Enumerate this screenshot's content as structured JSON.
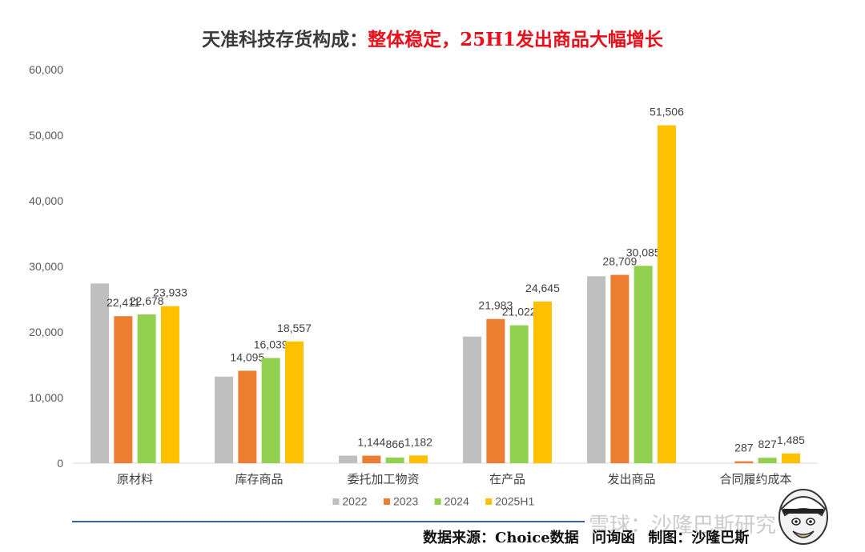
{
  "title": {
    "part1": "天准科技存货构成：",
    "part2": "整体稳定，25H1发出商品大幅增长"
  },
  "footer": {
    "source": "数据来源：Choice数据",
    "tool": "问询函",
    "author": "制图：沙隆巴斯"
  },
  "watermark": "雪球：沙隆巴斯研究",
  "colors": {
    "2022": "#bfbfbf",
    "2023": "#ed7d31",
    "2024": "#92d050",
    "2025H1": "#ffc000"
  },
  "chart_data": {
    "type": "bar",
    "title": "天准科技存货构成：整体稳定，25H1发出商品大幅增长",
    "categories": [
      "原材料",
      "库存商品",
      "委托加工物资",
      "在产品",
      "发出商品",
      "合同履约成本"
    ],
    "series": [
      {
        "name": "2022",
        "values": [
          27400,
          13200,
          1150,
          19300,
          28500,
          0
        ],
        "labels": [
          "",
          "",
          "",
          "",
          "",
          ""
        ]
      },
      {
        "name": "2023",
        "values": [
          22411,
          14095,
          1144,
          21983,
          28709,
          287
        ],
        "labels": [
          "22,411",
          "14,095",
          "1,144",
          "21,983",
          "28,709",
          "287"
        ]
      },
      {
        "name": "2024",
        "values": [
          22678,
          16039,
          866,
          21022,
          30085,
          827
        ],
        "labels": [
          "22,678",
          "16,039",
          "866",
          "21,022",
          "30,085",
          "827"
        ]
      },
      {
        "name": "2025H1",
        "values": [
          23933,
          18557,
          1182,
          24645,
          51506,
          1485
        ],
        "labels": [
          "23,933",
          "18,557",
          "1,182",
          "24,645",
          "51,506",
          "1,485"
        ]
      }
    ],
    "ylim": [
      0,
      60000
    ],
    "yticks": [
      "0",
      "10,000",
      "20,000",
      "30,000",
      "40,000",
      "50,000",
      "60,000"
    ],
    "ytick_values": [
      0,
      10000,
      20000,
      30000,
      40000,
      50000,
      60000
    ],
    "legend_position": "bottom",
    "grid": false
  }
}
